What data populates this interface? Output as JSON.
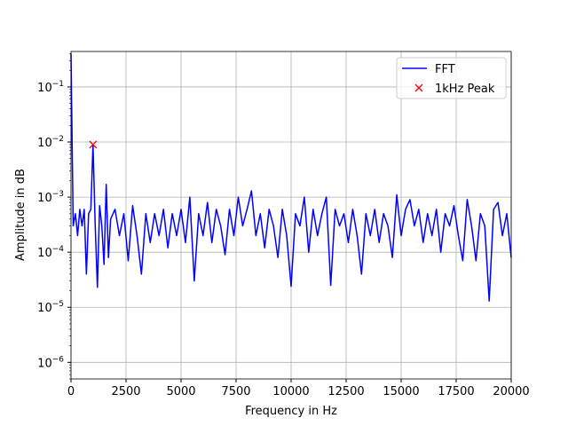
{
  "chart_data": {
    "type": "line",
    "xlabel": "Frequency in Hz",
    "ylabel": "Amplitude in dB",
    "xlim": [
      0,
      20000
    ],
    "xticks": [
      0,
      2500,
      5000,
      7500,
      10000,
      12500,
      15000,
      17500,
      20000
    ],
    "ylim": [
      5e-07,
      0.44
    ],
    "yscale": "log",
    "yticks": [
      {
        "value": 1e-06,
        "label": "10",
        "exponent": "−6"
      },
      {
        "value": 1e-05,
        "label": "10",
        "exponent": "−5"
      },
      {
        "value": 0.0001,
        "label": "10",
        "exponent": "−4"
      },
      {
        "value": 0.001,
        "label": "10",
        "exponent": "−3"
      },
      {
        "value": 0.01,
        "label": "10",
        "exponent": "−2"
      },
      {
        "value": 0.1,
        "label": "10",
        "exponent": "−1"
      }
    ],
    "grid": true,
    "legend": "upper right",
    "series": [
      {
        "name": "FFT",
        "color": "#0000ff",
        "marker": "line",
        "x": [
          0,
          100,
          200,
          300,
          400,
          500,
          600,
          700,
          800,
          900,
          1000,
          1100,
          1200,
          1300,
          1400,
          1500,
          1600,
          1700,
          1800,
          2000,
          2200,
          2400,
          2600,
          2800,
          3000,
          3200,
          3400,
          3600,
          3800,
          4000,
          4200,
          4400,
          4600,
          4800,
          5000,
          5200,
          5400,
          5600,
          5800,
          6000,
          6200,
          6400,
          6600,
          6800,
          7000,
          7200,
          7400,
          7600,
          7800,
          8000,
          8200,
          8400,
          8600,
          8800,
          9000,
          9200,
          9400,
          9600,
          9800,
          10000,
          10200,
          10400,
          10600,
          10800,
          11000,
          11200,
          11400,
          11600,
          11800,
          12000,
          12200,
          12400,
          12600,
          12800,
          13000,
          13200,
          13400,
          13600,
          13800,
          14000,
          14200,
          14400,
          14600,
          14800,
          15000,
          15200,
          15400,
          15600,
          15800,
          16000,
          16200,
          16400,
          16600,
          16800,
          17000,
          17200,
          17400,
          17600,
          17800,
          18000,
          18200,
          18400,
          18600,
          18800,
          19000,
          19200,
          19400,
          19600,
          19800,
          20000
        ],
        "values": [
          0.4,
          0.0003,
          0.0005,
          0.0002,
          0.0006,
          0.0003,
          0.0006,
          4e-05,
          0.0005,
          0.0006,
          0.009,
          0.0003,
          2.3e-05,
          0.0007,
          0.0003,
          6e-05,
          0.0017,
          8e-05,
          0.0004,
          0.0006,
          0.0002,
          0.0005,
          7e-05,
          0.0007,
          0.0002,
          4e-05,
          0.0005,
          0.00015,
          0.0005,
          0.0002,
          0.0006,
          0.00012,
          0.0005,
          0.0002,
          0.0006,
          0.00015,
          0.001,
          3e-05,
          0.0005,
          0.0002,
          0.0008,
          0.00015,
          0.0006,
          0.0003,
          9e-05,
          0.0006,
          0.0002,
          0.001,
          0.0003,
          0.0006,
          0.0013,
          0.0002,
          0.0005,
          0.00012,
          0.0006,
          0.0003,
          8e-05,
          0.0006,
          0.0002,
          2.4e-05,
          0.0005,
          0.0003,
          0.001,
          0.0001,
          0.0006,
          0.0002,
          0.0005,
          0.001,
          2.5e-05,
          0.0006,
          0.0003,
          0.0005,
          0.00015,
          0.0006,
          0.0002,
          4e-05,
          0.0005,
          0.0002,
          0.0006,
          0.00015,
          0.0005,
          0.0003,
          8e-05,
          0.0011,
          0.0002,
          0.0006,
          0.0009,
          0.0003,
          0.0006,
          0.00015,
          0.0005,
          0.0002,
          0.0006,
          0.0001,
          0.0005,
          0.0003,
          0.0007,
          0.0002,
          7e-05,
          0.0009,
          0.0003,
          7e-05,
          0.0005,
          0.0003,
          1.3e-05,
          0.0006,
          0.0008,
          0.0002,
          0.0005,
          8e-05
        ]
      },
      {
        "name": "1kHz Peak",
        "color": "#ff0000",
        "marker": "x",
        "x": [
          1000
        ],
        "values": [
          0.009
        ]
      }
    ]
  }
}
